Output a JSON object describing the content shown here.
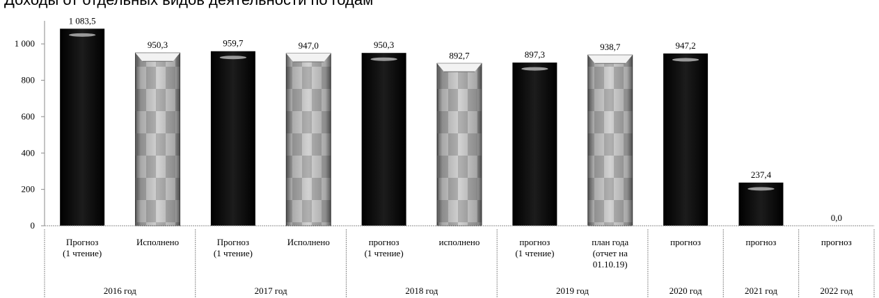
{
  "cut_text": "Доходы от отдельных видов деятельности по годам",
  "chart_data": {
    "type": "bar",
    "title": "",
    "xlabel": "",
    "ylabel": "",
    "ylim": [
      0,
      1100
    ],
    "yticks": [
      0,
      200,
      400,
      600,
      800,
      1000
    ],
    "ytick_labels": [
      "0",
      "200",
      "400",
      "600",
      "800",
      "1 000"
    ],
    "grid": false,
    "legend": "none",
    "categories": [
      "Прогноз (1 чтение)",
      "Исполнено",
      "Прогноз (1 чтение)",
      "Исполнено",
      "прогноз (1 чтение)",
      "исполнено",
      "прогноз (1 чтение)",
      "план года (отчет на 01.10.19)",
      "прогноз",
      "прогноз",
      "прогноз"
    ],
    "category_lines": [
      [
        "Прогноз",
        "(1 чтение)"
      ],
      [
        "Исполнено"
      ],
      [
        "Прогноз",
        "(1 чтение)"
      ],
      [
        "Исполнено"
      ],
      [
        "прогноз",
        "(1 чтение)"
      ],
      [
        "исполнено"
      ],
      [
        "прогноз",
        "(1 чтение)"
      ],
      [
        "план года",
        "(отчет на",
        "01.10.19)"
      ],
      [
        "прогноз"
      ],
      [
        "прогноз"
      ],
      [
        "прогноз"
      ]
    ],
    "values": [
      1083.5,
      950.3,
      959.7,
      947.0,
      950.3,
      892.7,
      897.3,
      938.7,
      947.2,
      237.4,
      0.0
    ],
    "value_labels": [
      "1 083,5",
      "950,3",
      "959,7",
      "947,0",
      "950,3",
      "892,7",
      "897,3",
      "938,7",
      "947,2",
      "237,4",
      "0,0"
    ],
    "styles": [
      "dark",
      "light",
      "dark",
      "light",
      "dark",
      "light",
      "dark",
      "light",
      "dark",
      "dark",
      "dark"
    ],
    "groups": [
      {
        "label": "2016 год",
        "start": 0,
        "count": 2
      },
      {
        "label": "2017 год",
        "start": 2,
        "count": 2
      },
      {
        "label": "2018 год",
        "start": 4,
        "count": 2
      },
      {
        "label": "2019 год",
        "start": 6,
        "count": 2
      },
      {
        "label": "2020 год",
        "start": 8,
        "count": 1
      },
      {
        "label": "2021 год",
        "start": 9,
        "count": 1
      },
      {
        "label": "2022 год",
        "start": 10,
        "count": 1
      }
    ],
    "colors": {
      "dark_bar": "#0a0a0a",
      "light_bar_1": "#bdbdbd",
      "light_bar_2": "#8f8f8f",
      "axis": "#8a8a8a"
    }
  }
}
